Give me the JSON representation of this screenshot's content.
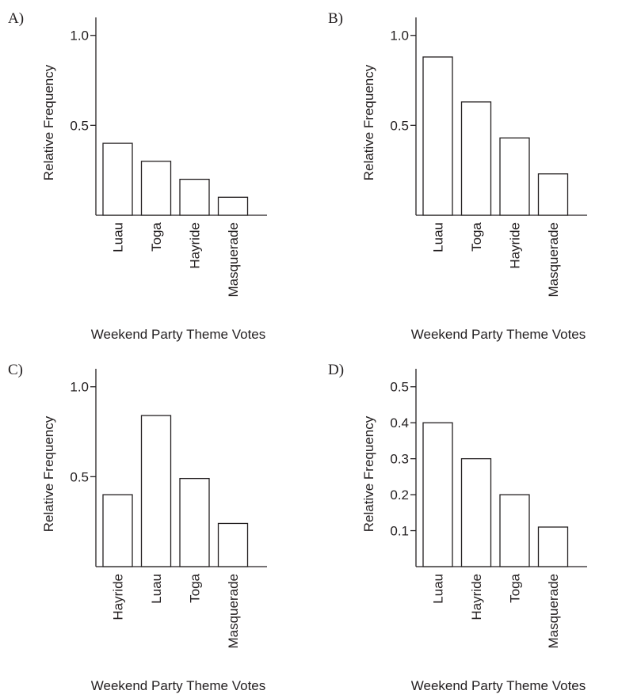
{
  "chart_data": [
    {
      "label": "A)",
      "type": "bar",
      "categories": [
        "Luau",
        "Toga",
        "Hayride",
        "Masquerade"
      ],
      "values": [
        0.4,
        0.3,
        0.2,
        0.1
      ],
      "ylabel": "Relative Frequency",
      "xlabel": "Weekend Party Theme Votes",
      "ylim": [
        0,
        1.1
      ],
      "yticks": [
        "0.5",
        "1.0"
      ],
      "ytick_values": [
        0.5,
        1.0
      ]
    },
    {
      "label": "B)",
      "type": "bar",
      "categories": [
        "Luau",
        "Toga",
        "Hayride",
        "Masquerade"
      ],
      "values": [
        0.88,
        0.63,
        0.43,
        0.23
      ],
      "ylabel": "Relative Frequency",
      "xlabel": "Weekend Party Theme Votes",
      "ylim": [
        0,
        1.1
      ],
      "yticks": [
        "0.5",
        "1.0"
      ],
      "ytick_values": [
        0.5,
        1.0
      ]
    },
    {
      "label": "C)",
      "type": "bar",
      "categories": [
        "Hayride",
        "Luau",
        "Toga",
        "Masquerade"
      ],
      "values": [
        0.4,
        0.84,
        0.49,
        0.24
      ],
      "ylabel": "Relative Frequency",
      "xlabel": "Weekend Party Theme Votes",
      "ylim": [
        0,
        1.1
      ],
      "yticks": [
        "0.5",
        "1.0"
      ],
      "ytick_values": [
        0.5,
        1.0
      ]
    },
    {
      "label": "D)",
      "type": "bar",
      "categories": [
        "Luau",
        "Hayride",
        "Toga",
        "Masquerade"
      ],
      "values": [
        0.4,
        0.3,
        0.2,
        0.11
      ],
      "ylabel": "Relative Frequency",
      "xlabel": "Weekend Party Theme Votes",
      "ylim": [
        0,
        0.55
      ],
      "yticks": [
        "0.1",
        "0.2",
        "0.3",
        "0.4",
        "0.5"
      ],
      "ytick_values": [
        0.1,
        0.2,
        0.3,
        0.4,
        0.5
      ]
    }
  ]
}
